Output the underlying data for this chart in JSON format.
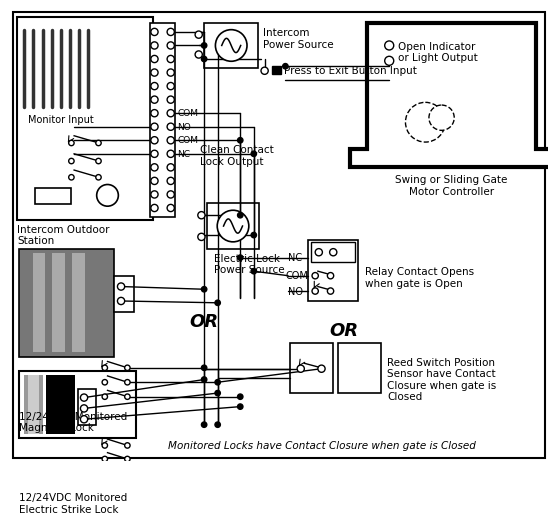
{
  "bg_color": "#ffffff",
  "line_color": "#000000",
  "labels": {
    "monitor_input": "Monitor Input",
    "intercom_outdoor": "Intercom Outdoor\nStation",
    "intercom_power": "Intercom\nPower Source",
    "press_to_exit": "Press to Exit Button Input",
    "clean_contact": "Clean Contact\nLock Output",
    "electric_lock_power": "Electric Lock\nPower Source",
    "magnetic_lock": "12/24VDC Monitored\nMagnetic Lock",
    "electric_strike": "12/24VDC Monitored\nElectric Strike Lock",
    "swing_gate": "Swing or Sliding Gate\nMotor Controller",
    "open_indicator": "Open Indicator\nor Light Output",
    "relay_contact": "Relay Contact Opens\nwhen gate is Open",
    "reed_switch": "Reed Switch Position\nSensor have Contact\nClosure when gate is\nClosed",
    "monitored_locks": "Monitored Locks have Contact Closure when gate is Closed",
    "or1": "OR",
    "or2": "OR",
    "com_lbl": "COM",
    "no_lbl": "NO",
    "nc_lbl": "NC"
  }
}
